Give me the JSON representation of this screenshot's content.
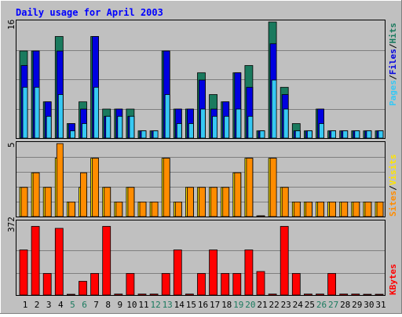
{
  "chart_data": [
    {
      "type": "bar",
      "title": "Daily usage for April 2003",
      "categories": [
        "1",
        "2",
        "3",
        "4",
        "5",
        "6",
        "7",
        "8",
        "9",
        "10",
        "11",
        "12",
        "13",
        "14",
        "15",
        "16",
        "17",
        "18",
        "19",
        "20",
        "21",
        "22",
        "23",
        "24",
        "25",
        "26",
        "27",
        "28",
        "29",
        "30",
        "31"
      ],
      "weekend_categories": [
        "5",
        "6",
        "12",
        "13",
        "19",
        "20",
        "26",
        "27"
      ],
      "ymax_label": "16",
      "ylim": [
        0,
        16
      ],
      "legend": {
        "items": [
          "Pages",
          "Files",
          "Hits"
        ],
        "separator": "/"
      },
      "series": [
        {
          "name": "Hits",
          "color": "#1a7a5e",
          "values": [
            12,
            12,
            5,
            14,
            2,
            5,
            14,
            4,
            4,
            4,
            1,
            1,
            12,
            4,
            4,
            9,
            6,
            5,
            9,
            10,
            1,
            16,
            7,
            2,
            1,
            4,
            1,
            1,
            1,
            1,
            1
          ]
        },
        {
          "name": "Files",
          "color": "#0000e0",
          "values": [
            10,
            12,
            5,
            12,
            2,
            4,
            14,
            3,
            4,
            3,
            1,
            1,
            12,
            4,
            4,
            8,
            4,
            5,
            9,
            7,
            1,
            13,
            6,
            1,
            1,
            4,
            1,
            1,
            1,
            1,
            1
          ]
        },
        {
          "name": "Pages",
          "color": "#36c8f4",
          "values": [
            7,
            7,
            3,
            6,
            1,
            2,
            7,
            3,
            3,
            3,
            1,
            1,
            6,
            2,
            2,
            4,
            3,
            3,
            4,
            3,
            1,
            8,
            4,
            1,
            1,
            2,
            1,
            1,
            1,
            1,
            1
          ]
        }
      ]
    },
    {
      "type": "bar",
      "title": "",
      "categories": [
        "1",
        "2",
        "3",
        "4",
        "5",
        "6",
        "7",
        "8",
        "9",
        "10",
        "11",
        "12",
        "13",
        "14",
        "15",
        "16",
        "17",
        "18",
        "19",
        "20",
        "21",
        "22",
        "23",
        "24",
        "25",
        "26",
        "27",
        "28",
        "29",
        "30",
        "31"
      ],
      "ymax_label": "5",
      "ylim": [
        0,
        5
      ],
      "legend": {
        "items": [
          "Sites",
          "Visits"
        ],
        "separator": "/"
      },
      "series": [
        {
          "name": "Visits",
          "color": "#ffe400",
          "values": [
            2,
            3,
            2,
            4,
            1,
            2,
            4,
            2,
            1,
            2,
            1,
            1,
            4,
            1,
            2,
            2,
            2,
            2,
            3,
            4,
            0,
            4,
            2,
            1,
            1,
            1,
            1,
            1,
            1,
            1,
            1
          ]
        },
        {
          "name": "Sites",
          "color": "#ff8c00",
          "values": [
            2,
            3,
            2,
            5,
            1,
            3,
            4,
            2,
            1,
            2,
            1,
            1,
            4,
            1,
            2,
            2,
            2,
            2,
            3,
            4,
            0,
            4,
            2,
            1,
            1,
            1,
            1,
            1,
            1,
            1,
            1
          ]
        }
      ]
    },
    {
      "type": "bar",
      "title": "",
      "categories": [
        "1",
        "2",
        "3",
        "4",
        "5",
        "6",
        "7",
        "8",
        "9",
        "10",
        "11",
        "12",
        "13",
        "14",
        "15",
        "16",
        "17",
        "18",
        "19",
        "20",
        "21",
        "22",
        "23",
        "24",
        "25",
        "26",
        "27",
        "28",
        "29",
        "30",
        "31"
      ],
      "ymax_label": "372",
      "ylim": [
        0,
        372
      ],
      "legend": {
        "items": [
          "KBytes"
        ],
        "separator": ""
      },
      "series": [
        {
          "name": "KBytes",
          "color": "#ff0000",
          "values": [
            230,
            350,
            110,
            340,
            0,
            70,
            110,
            350,
            5,
            110,
            5,
            5,
            110,
            230,
            5,
            110,
            230,
            110,
            110,
            230,
            120,
            5,
            350,
            110,
            5,
            5,
            110,
            5,
            5,
            0,
            0
          ]
        }
      ]
    }
  ]
}
